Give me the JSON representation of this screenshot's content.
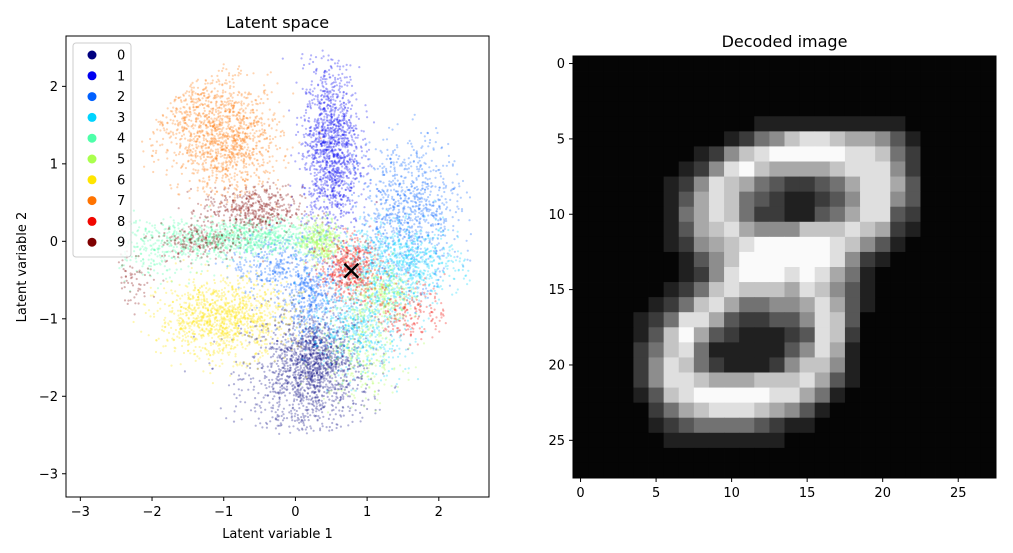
{
  "chart_data": [
    {
      "type": "scatter",
      "title": "Latent space",
      "xlabel": "Latent variable 1",
      "ylabel": "Latent variable 2",
      "xlim": [
        -3.2,
        2.7
      ],
      "ylim": [
        -3.3,
        2.65
      ],
      "xticks": [
        -3,
        -2,
        -1,
        0,
        1,
        2
      ],
      "yticks": [
        -3,
        -2,
        -1,
        0,
        1,
        2
      ],
      "grid": false,
      "legend_position": "upper-left",
      "colormap": "jet",
      "series": [
        {
          "name": "0",
          "color": "#00007f",
          "clusters": [
            {
              "cx": 0.15,
              "cy": -1.75,
              "sx": 0.45,
              "sy": 0.45,
              "n": 1200
            },
            {
              "cx": 0.3,
              "cy": -1.5,
              "sx": 0.2,
              "sy": 0.25,
              "n": 500
            }
          ]
        },
        {
          "name": "1",
          "color": "#0000f1",
          "clusters": [
            {
              "cx": 0.5,
              "cy": 1.2,
              "sx": 0.2,
              "sy": 0.55,
              "n": 1400
            }
          ]
        },
        {
          "name": "2",
          "color": "#0060ff",
          "clusters": [
            {
              "cx": 1.6,
              "cy": 0.4,
              "sx": 0.35,
              "sy": 0.45,
              "n": 900
            },
            {
              "cx": 0.2,
              "cy": -0.7,
              "sx": 0.2,
              "sy": 0.25,
              "n": 400
            },
            {
              "cx": -0.3,
              "cy": -0.3,
              "sx": 0.3,
              "sy": 0.2,
              "n": 300
            }
          ]
        },
        {
          "name": "3",
          "color": "#00d4ff",
          "clusters": [
            {
              "cx": 1.4,
              "cy": -0.3,
              "sx": 0.45,
              "sy": 0.25,
              "n": 900
            },
            {
              "cx": 0.9,
              "cy": -1.1,
              "sx": 0.35,
              "sy": 0.3,
              "n": 600
            }
          ]
        },
        {
          "name": "4",
          "color": "#4dffa9",
          "clusters": [
            {
              "cx": -0.7,
              "cy": 0.05,
              "sx": 0.6,
              "sy": 0.12,
              "n": 900
            },
            {
              "cx": -2.0,
              "cy": -0.1,
              "sx": 0.5,
              "sy": 0.2,
              "n": 300
            }
          ]
        },
        {
          "name": "5",
          "color": "#aaff4d",
          "clusters": [
            {
              "cx": 0.35,
              "cy": 0.0,
              "sx": 0.15,
              "sy": 0.15,
              "n": 350
            },
            {
              "cx": 1.2,
              "cy": -0.7,
              "sx": 0.2,
              "sy": 0.2,
              "n": 300
            },
            {
              "cx": 0.9,
              "cy": -1.5,
              "sx": 0.3,
              "sy": 0.3,
              "n": 250
            }
          ]
        },
        {
          "name": "6",
          "color": "#ffe500",
          "clusters": [
            {
              "cx": -1.0,
              "cy": -1.0,
              "sx": 0.45,
              "sy": 0.25,
              "n": 1200
            }
          ]
        },
        {
          "name": "7",
          "color": "#ff7300",
          "clusters": [
            {
              "cx": -0.9,
              "cy": 1.3,
              "sx": 0.35,
              "sy": 0.35,
              "n": 1000
            },
            {
              "cx": -1.5,
              "cy": 1.7,
              "sx": 0.35,
              "sy": 0.4,
              "n": 500
            }
          ]
        },
        {
          "name": "8",
          "color": "#f10700",
          "clusters": [
            {
              "cx": 0.75,
              "cy": -0.35,
              "sx": 0.2,
              "sy": 0.2,
              "n": 500
            },
            {
              "cx": 1.6,
              "cy": -0.9,
              "sx": 0.25,
              "sy": 0.2,
              "n": 200
            }
          ]
        },
        {
          "name": "9",
          "color": "#7f0000",
          "clusters": [
            {
              "cx": -0.6,
              "cy": 0.4,
              "sx": 0.35,
              "sy": 0.15,
              "n": 450
            },
            {
              "cx": -1.3,
              "cy": 0.0,
              "sx": 0.3,
              "sy": 0.12,
              "n": 200
            },
            {
              "cx": -2.5,
              "cy": -0.5,
              "sx": 0.25,
              "sy": 0.2,
              "n": 150
            }
          ]
        }
      ],
      "marker": {
        "symbol": "x",
        "x": 0.78,
        "y": -0.38,
        "color": "#000000"
      }
    },
    {
      "type": "heatmap",
      "title": "Decoded image",
      "colormap": "gray",
      "xlim": [
        -0.5,
        27.5
      ],
      "ylim": [
        27.5,
        -0.5
      ],
      "xticks": [
        0,
        5,
        10,
        15,
        20,
        25
      ],
      "yticks": [
        0,
        5,
        10,
        15,
        20,
        25
      ],
      "value_range": [
        0,
        1
      ],
      "width": 28,
      "height": 28,
      "pixels": [
        "0000000000000000000000000000",
        "0000000000000000000000000000",
        "0000000000000000000000000000",
        "0000000000000000000000000000",
        "0000000000001111111111000000",
        "0000000000124578876653100000",
        "0000000012578999998874200000",
        "0000000125897666678885200000",
        "0000001258764322346886300000",
        "0000001368743211235885300000",
        "0000001468742211346883200000",
        "0000001367865557778762100000",
        "0000001256789999987531000000",
        "0000000135799999985210000000",
        "0000000125899989864100000000",
        "0000001247877768753100000000",
        "0000012478644556863100000000",
        "0000124886322335873000000000",
        "0000137963211123872000000000",
        "0000247841111135861000000000",
        "0000258742111257751000000000",
        "0000258876667778631000000000",
        "0000137899999886410000000000",
        "0000024678887653100000000000",
        "0000012344443211000000000000",
        "0000001111111100000000000000",
        "0000000000000000000000000000",
        "0000000000000000000000000000"
      ]
    }
  ]
}
